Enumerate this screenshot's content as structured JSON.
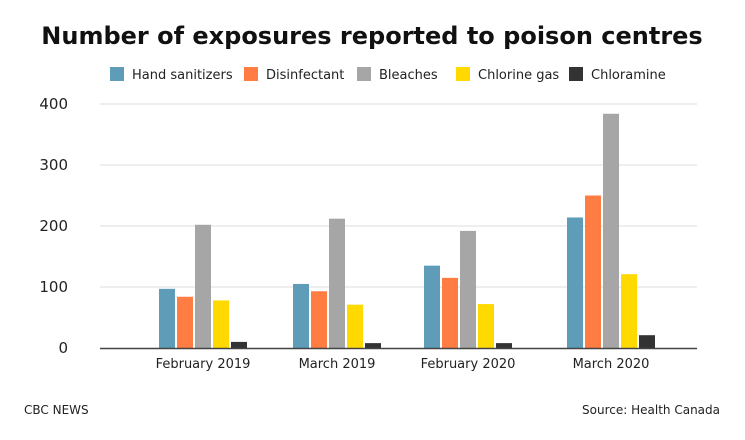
{
  "chart_data": {
    "type": "bar",
    "title": "Number of exposures reported to poison centres",
    "categories": [
      "February 2019",
      "March 2019",
      "February 2020",
      "March 2020"
    ],
    "series": [
      {
        "name": "Hand sanitizers",
        "color": "#5f9cb8",
        "values": [
          97,
          105,
          135,
          214
        ]
      },
      {
        "name": "Disinfectant",
        "color": "#ff7c43",
        "values": [
          84,
          93,
          115,
          250
        ]
      },
      {
        "name": "Bleaches",
        "color": "#a6a6a6",
        "values": [
          202,
          212,
          192,
          384
        ]
      },
      {
        "name": "Chlorine gas",
        "color": "#ffd900",
        "values": [
          78,
          71,
          72,
          121
        ]
      },
      {
        "name": "Chloramine",
        "color": "#333333",
        "values": [
          10,
          8,
          8,
          21
        ]
      }
    ],
    "yticks": [
      "0",
      "100",
      "200",
      "300",
      "400"
    ],
    "ylim": [
      0,
      400
    ],
    "grid": true,
    "legend": "top"
  },
  "footer": {
    "source_left": "CBC NEWS",
    "source_right": "Source: Health Canada"
  }
}
